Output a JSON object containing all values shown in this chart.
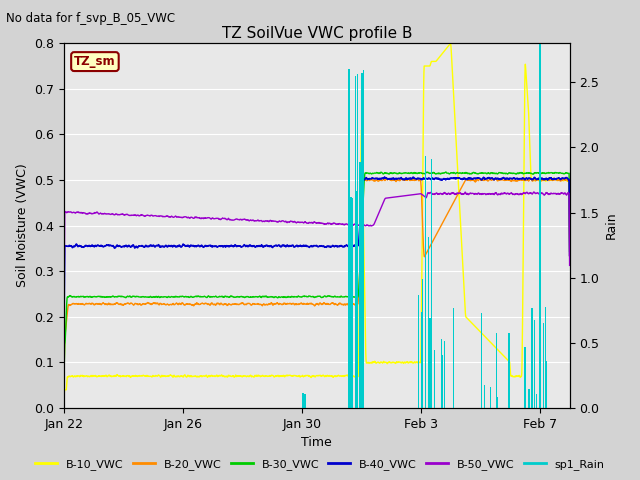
{
  "title": "TZ SoilVue VWC profile B",
  "subtitle": "No data for f_svp_B_05_VWC",
  "xlabel": "Time",
  "ylabel": "Soil Moisture (VWC)",
  "ylabel_right": "Rain",
  "ylim_left": [
    0.0,
    0.8
  ],
  "ylim_right": [
    0.0,
    2.8
  ],
  "figsize": [
    6.4,
    4.8
  ],
  "dpi": 100,
  "colors": {
    "B10": "#ffff00",
    "B20": "#ff8c00",
    "B30": "#00cc00",
    "B40": "#0000cc",
    "B50": "#9900cc",
    "Rain": "#00cccc"
  },
  "legend_labels": [
    "B-10_VWC",
    "B-20_VWC",
    "B-30_VWC",
    "B-40_VWC",
    "B-50_VWC",
    "sp1_Rain"
  ],
  "tz_sm_label": "TZ_sm",
  "x_tick_labels": [
    "Jan 22",
    "Jan 26",
    "Jan 30",
    "Feb 3",
    "Feb 7"
  ],
  "x_tick_positions": [
    0,
    4,
    8,
    12,
    16
  ],
  "xlim": [
    0,
    17
  ]
}
